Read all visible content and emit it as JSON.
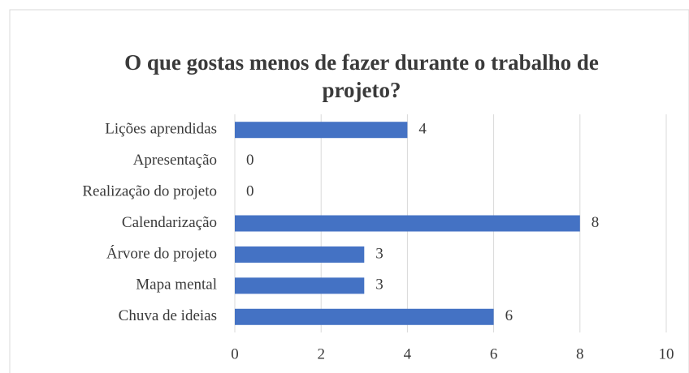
{
  "chart_data": {
    "type": "barh",
    "title": "O que gostas menos de fazer durante o trabalho de projeto?",
    "categories": [
      "Lições aprendidas",
      "Apresentação",
      "Realização do projeto",
      "Calendarização",
      "Árvore do projeto",
      "Mapa mental",
      "Chuva de ideias"
    ],
    "values": [
      4,
      0,
      0,
      8,
      3,
      3,
      6
    ],
    "color": "#4472c4",
    "xlim": [
      0,
      10
    ],
    "xticks": [
      0,
      2,
      4,
      6,
      8,
      10
    ],
    "grid": true
  }
}
